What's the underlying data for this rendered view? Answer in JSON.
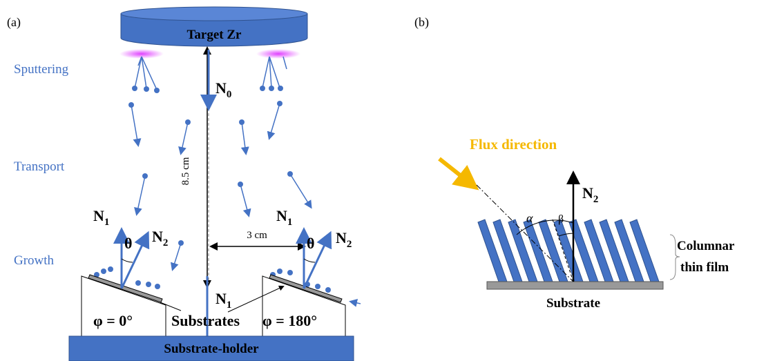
{
  "panel_a": {
    "label": "(a)",
    "target": "Target Zr",
    "stages": [
      "Sputtering",
      "Transport",
      "Growth"
    ],
    "n0": {
      "base": "N",
      "sub": "0"
    },
    "distance_vertical": "8.5 cm",
    "distance_horizontal": "3 cm",
    "left": {
      "n1": {
        "base": "N",
        "sub": "1"
      },
      "theta": "θ",
      "n2": {
        "base": "N",
        "sub": "2"
      },
      "phi": "φ = 0°"
    },
    "right": {
      "n1": {
        "base": "N",
        "sub": "1"
      },
      "theta": "θ",
      "n2": {
        "base": "N",
        "sub": "2"
      },
      "phi": "φ = 180°"
    },
    "substrates": "Substrates",
    "bottom_n1": {
      "base": "N",
      "sub": "1"
    },
    "holder": "Substrate-holder"
  },
  "panel_b": {
    "label": "(b)",
    "flux": "Flux direction",
    "alpha": "α",
    "beta": "β",
    "n2": {
      "base": "N",
      "sub": "2"
    },
    "film": [
      "Columnar",
      "thin film"
    ],
    "substrate": "Substrate"
  }
}
